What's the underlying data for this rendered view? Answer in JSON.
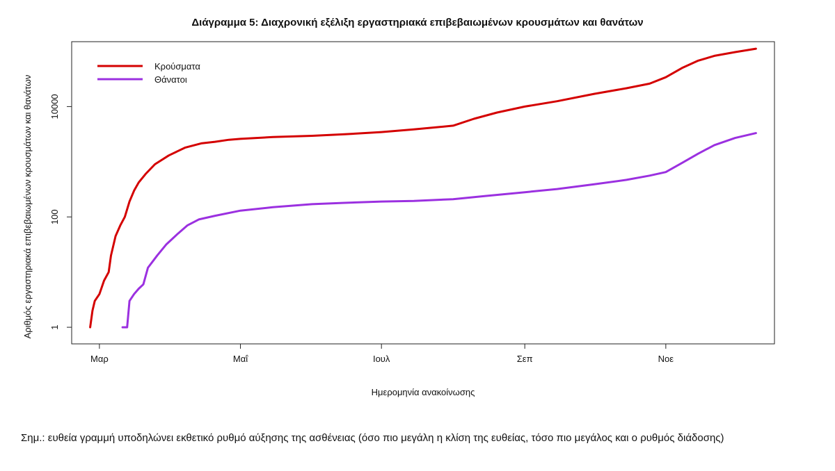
{
  "chart_data": {
    "type": "line",
    "title": "Διάγραμμα 5: Διαχρονική εξέλιξη εργαστηριακά επιβεβαιωμένων κρουσμάτων και θανάτων",
    "xlabel": "Ημερομηνία ανακοίνωσης",
    "ylabel": "Αριθμός εργαστηριακά επιβεβαιωμένων κρουσμάτων και θανάτων",
    "y_scale": "log",
    "x_ticks": [
      {
        "label": "Μαρ",
        "date": "2020-03-01"
      },
      {
        "label": "Μαΐ",
        "date": "2020-05-01"
      },
      {
        "label": "Ιουλ",
        "date": "2020-07-01"
      },
      {
        "label": "Σεπ",
        "date": "2020-09-01"
      },
      {
        "label": "Νοε",
        "date": "2020-11-01"
      }
    ],
    "y_ticks": [
      {
        "label": "1",
        "value": 1
      },
      {
        "label": "100",
        "value": 100
      },
      {
        "label": "10000",
        "value": 10000
      }
    ],
    "xlim": [
      "2020-02-18",
      "2020-12-18"
    ],
    "ylim": [
      0.5,
      150000
    ],
    "legend_position": "top-left",
    "grid": false,
    "series": [
      {
        "name": "Κρούσματα",
        "color": "#d40000",
        "points": [
          [
            "2020-02-26",
            1
          ],
          [
            "2020-02-27",
            2
          ],
          [
            "2020-02-28",
            3
          ],
          [
            "2020-03-01",
            4
          ],
          [
            "2020-03-03",
            7
          ],
          [
            "2020-03-05",
            10
          ],
          [
            "2020-03-06",
            20
          ],
          [
            "2020-03-08",
            45
          ],
          [
            "2020-03-10",
            70
          ],
          [
            "2020-03-12",
            100
          ],
          [
            "2020-03-14",
            190
          ],
          [
            "2020-03-16",
            300
          ],
          [
            "2020-03-18",
            420
          ],
          [
            "2020-03-21",
            600
          ],
          [
            "2020-03-25",
            900
          ],
          [
            "2020-03-31",
            1300
          ],
          [
            "2020-04-07",
            1800
          ],
          [
            "2020-04-14",
            2150
          ],
          [
            "2020-04-20",
            2300
          ],
          [
            "2020-04-26",
            2500
          ],
          [
            "2020-05-01",
            2600
          ],
          [
            "2020-05-15",
            2800
          ],
          [
            "2020-06-01",
            2950
          ],
          [
            "2020-06-15",
            3150
          ],
          [
            "2020-07-01",
            3450
          ],
          [
            "2020-07-15",
            3850
          ],
          [
            "2020-08-01",
            4500
          ],
          [
            "2020-08-10",
            6000
          ],
          [
            "2020-08-20",
            7800
          ],
          [
            "2020-09-01",
            10000
          ],
          [
            "2020-09-15",
            12500
          ],
          [
            "2020-10-01",
            17000
          ],
          [
            "2020-10-15",
            21500
          ],
          [
            "2020-10-25",
            26000
          ],
          [
            "2020-11-01",
            34000
          ],
          [
            "2020-11-08",
            50000
          ],
          [
            "2020-11-15",
            68000
          ],
          [
            "2020-11-22",
            83000
          ],
          [
            "2020-12-01",
            97000
          ],
          [
            "2020-12-10",
            112000
          ]
        ]
      },
      {
        "name": "Θάνατοι",
        "color": "#9b30e0",
        "points": [
          [
            "2020-03-11",
            1
          ],
          [
            "2020-03-13",
            1
          ],
          [
            "2020-03-14",
            3
          ],
          [
            "2020-03-16",
            4
          ],
          [
            "2020-03-18",
            5
          ],
          [
            "2020-03-20",
            6
          ],
          [
            "2020-03-22",
            12
          ],
          [
            "2020-03-26",
            20
          ],
          [
            "2020-03-30",
            32
          ],
          [
            "2020-04-04",
            50
          ],
          [
            "2020-04-08",
            70
          ],
          [
            "2020-04-13",
            90
          ],
          [
            "2020-04-20",
            105
          ],
          [
            "2020-05-01",
            130
          ],
          [
            "2020-05-15",
            150
          ],
          [
            "2020-06-01",
            170
          ],
          [
            "2020-06-15",
            180
          ],
          [
            "2020-07-01",
            190
          ],
          [
            "2020-07-15",
            195
          ],
          [
            "2020-08-01",
            210
          ],
          [
            "2020-08-15",
            240
          ],
          [
            "2020-09-01",
            280
          ],
          [
            "2020-09-15",
            320
          ],
          [
            "2020-10-01",
            390
          ],
          [
            "2020-10-15",
            470
          ],
          [
            "2020-10-25",
            560
          ],
          [
            "2020-11-01",
            650
          ],
          [
            "2020-11-08",
            950
          ],
          [
            "2020-11-15",
            1400
          ],
          [
            "2020-11-22",
            2000
          ],
          [
            "2020-12-01",
            2700
          ],
          [
            "2020-12-10",
            3300
          ]
        ]
      }
    ]
  },
  "note": "Σημ.: ευθεία γραμμή υποδηλώνει εκθετικό ρυθμό αύξησης της ασθένειας (όσο πιο μεγάλη η κλίση της ευθείας, τόσο πιο μεγάλος και ο ρυθμός διάδοσης)"
}
